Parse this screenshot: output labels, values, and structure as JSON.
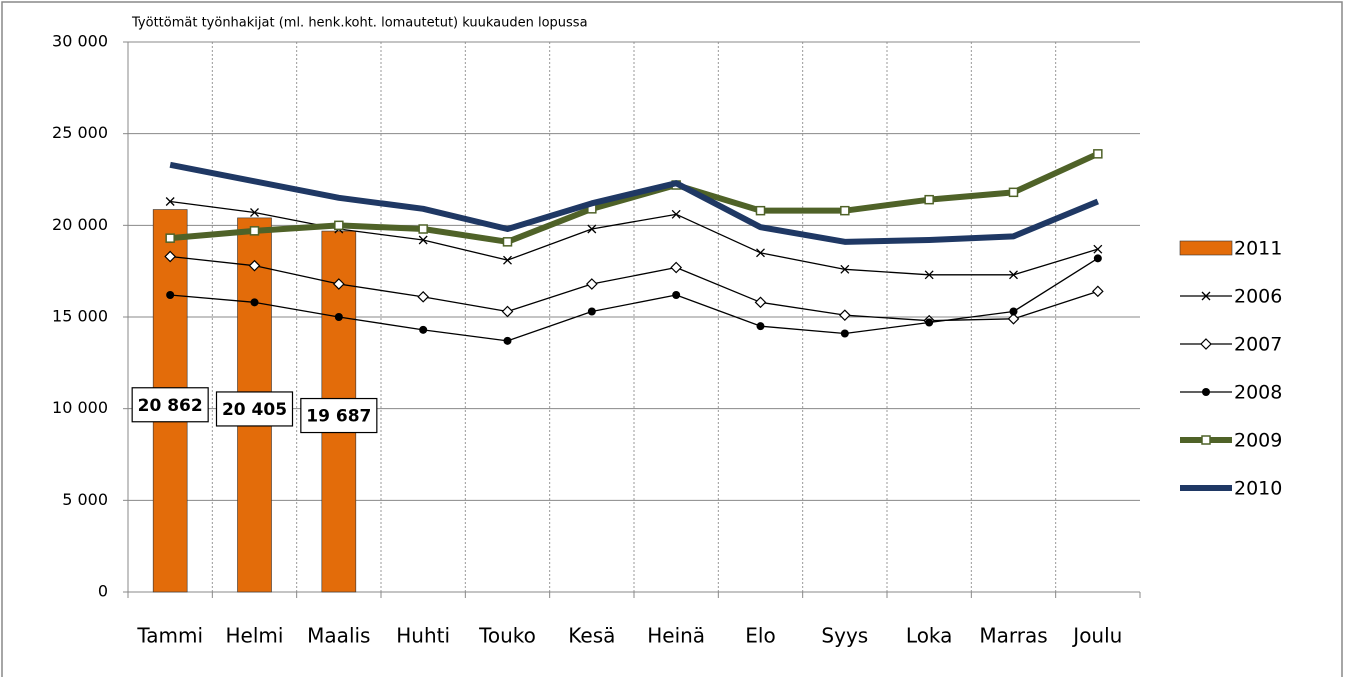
{
  "chart_data": {
    "type": "combo",
    "title": "Työttömät työnhakijat (ml. henk.koht. lomautetut) kuukauden lopussa",
    "categories": [
      "Tammi",
      "Helmi",
      "Maalis",
      "Huhti",
      "Touko",
      "Kesä",
      "Heinä",
      "Elo",
      "Syys",
      "Loka",
      "Marras",
      "Joulu"
    ],
    "ylim": [
      0,
      30000
    ],
    "yticks": [
      0,
      {
        "value": 5000,
        "label": "5 000"
      },
      {
        "value": 10000,
        "label": "10 000"
      },
      {
        "value": 15000,
        "label": "15 000"
      },
      {
        "value": 20000,
        "label": "20 000"
      },
      {
        "value": 25000,
        "label": "25 000"
      },
      {
        "value": 30000,
        "label": "30 000"
      }
    ],
    "grid": true,
    "legend": "right",
    "series": [
      {
        "name": "2011",
        "type": "bar",
        "color": "#e36c0a",
        "values": [
          20862,
          20405,
          19687,
          null,
          null,
          null,
          null,
          null,
          null,
          null,
          null,
          null
        ],
        "value_labels": [
          "20 862",
          "20 405",
          "19 687",
          null,
          null,
          null,
          null,
          null,
          null,
          null,
          null,
          null
        ]
      },
      {
        "name": "2006",
        "type": "line",
        "marker": "cross",
        "color": "#000000",
        "values": [
          21300,
          20700,
          19800,
          19200,
          18100,
          19800,
          20600,
          18500,
          17600,
          17300,
          17300,
          18700
        ]
      },
      {
        "name": "2007",
        "type": "line",
        "marker": "diamond",
        "color": "#000000",
        "values": [
          18300,
          17800,
          16800,
          16100,
          15300,
          16800,
          17700,
          15800,
          15100,
          14800,
          14900,
          16400
        ]
      },
      {
        "name": "2008",
        "type": "line",
        "marker": "circle",
        "color": "#000000",
        "values": [
          16200,
          15800,
          15000,
          14300,
          13700,
          15300,
          16200,
          14500,
          14100,
          14700,
          15300,
          18200
        ]
      },
      {
        "name": "2009",
        "type": "line",
        "marker": "square",
        "color": "#4f6228",
        "values": [
          19300,
          19700,
          20000,
          19800,
          19100,
          20900,
          22200,
          20800,
          20800,
          21400,
          21800,
          23900
        ]
      },
      {
        "name": "2010",
        "type": "line",
        "marker": "none",
        "color": "#1f3864",
        "values": [
          23300,
          22400,
          21500,
          20900,
          19800,
          21200,
          22300,
          19900,
          19100,
          19200,
          19400,
          21300
        ]
      }
    ]
  }
}
